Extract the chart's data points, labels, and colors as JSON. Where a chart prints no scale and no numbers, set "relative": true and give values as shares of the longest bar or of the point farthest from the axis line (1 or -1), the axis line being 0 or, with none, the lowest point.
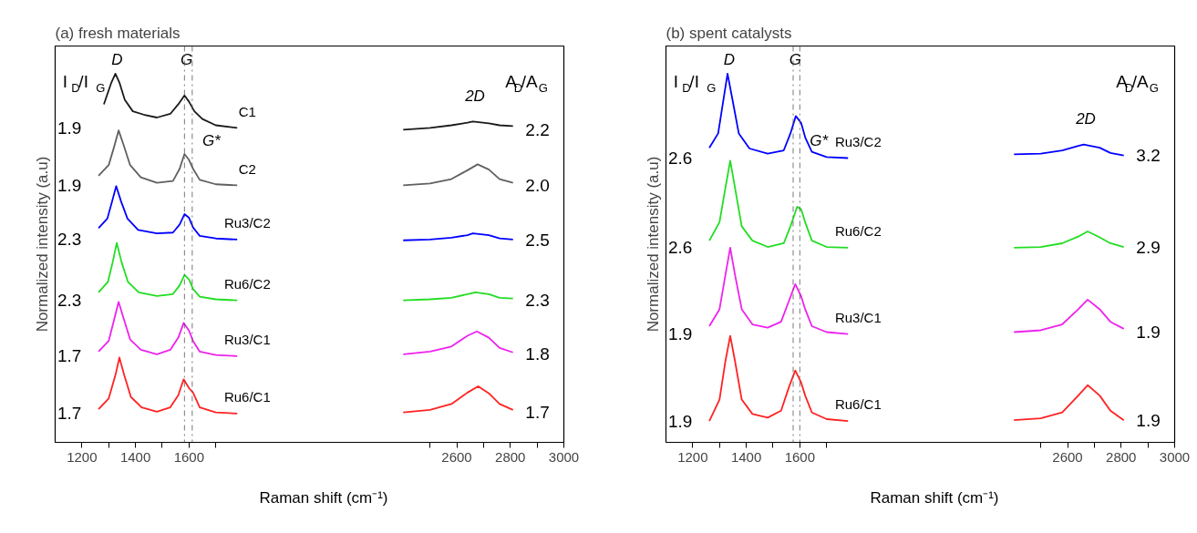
{
  "chart_data": [
    {
      "type": "line",
      "title": "(a) fresh materials",
      "ylabel": "Normalized intensity (a.u)",
      "xlabel": "Raman shift (cm⁻¹)",
      "relative": true,
      "xlim": [
        1100,
        3000
      ],
      "xticks": [
        1200,
        {
          "value": 1300,
          "label": null
        },
        1400,
        {
          "value": 1500,
          "label": null
        },
        1600,
        {
          "value": 1700,
          "label": null
        },
        {
          "value": 2500,
          "label": null
        },
        2600,
        {
          "value": 2700,
          "label": null
        },
        2800,
        {
          "value": 2900,
          "label": null
        },
        3000
      ],
      "series": [
        {
          "name": "C1",
          "color": "#1a1a1a",
          "x": [
            1282,
            1310,
            1325,
            1340,
            1360,
            1390,
            1430,
            1480,
            1530,
            1560,
            1583,
            1600,
            1620,
            1650,
            1700,
            1780,
            2400,
            2500,
            2580,
            2640,
            2660,
            2720,
            2760,
            2810
          ],
          "values": [
            0.917,
            0.976,
            1.0,
            0.976,
            0.929,
            0.898,
            0.889,
            0.881,
            0.891,
            0.917,
            0.941,
            0.924,
            0.898,
            0.877,
            0.86,
            0.853,
            0.848,
            0.853,
            0.86,
            0.867,
            0.87,
            0.865,
            0.86,
            0.858
          ]
        },
        {
          "name": "C2",
          "color": "#606060",
          "x": [
            1262,
            1300,
            1320,
            1337,
            1355,
            1380,
            1420,
            1480,
            1540,
            1565,
            1583,
            1600,
            1615,
            1640,
            1700,
            1780,
            2400,
            2500,
            2580,
            2640,
            2678,
            2720,
            2760,
            2810
          ],
          "values": [
            0.723,
            0.752,
            0.801,
            0.846,
            0.808,
            0.752,
            0.719,
            0.704,
            0.709,
            0.742,
            0.782,
            0.766,
            0.742,
            0.712,
            0.7,
            0.697,
            0.697,
            0.702,
            0.714,
            0.738,
            0.754,
            0.74,
            0.714,
            0.704
          ]
        },
        {
          "name": "Ru3/C2",
          "color": "#0000ff",
          "x": [
            1262,
            1295,
            1313,
            1328,
            1346,
            1370,
            1410,
            1480,
            1540,
            1565,
            1583,
            1600,
            1615,
            1640,
            1700,
            1780,
            2400,
            2500,
            2580,
            2640,
            2660,
            2720,
            2760,
            2810
          ],
          "values": [
            0.581,
            0.607,
            0.654,
            0.695,
            0.654,
            0.607,
            0.576,
            0.567,
            0.569,
            0.591,
            0.619,
            0.609,
            0.583,
            0.56,
            0.553,
            0.55,
            0.548,
            0.55,
            0.555,
            0.562,
            0.567,
            0.562,
            0.553,
            0.55
          ]
        },
        {
          "name": "Ru6/C2",
          "color": "#22dd22",
          "x": [
            1262,
            1297,
            1315,
            1330,
            1348,
            1372,
            1412,
            1480,
            1540,
            1565,
            1583,
            1600,
            1615,
            1640,
            1700,
            1780,
            2400,
            2500,
            2580,
            2640,
            2670,
            2720,
            2760,
            2810
          ],
          "values": [
            0.407,
            0.435,
            0.489,
            0.541,
            0.489,
            0.435,
            0.407,
            0.397,
            0.402,
            0.426,
            0.454,
            0.442,
            0.416,
            0.395,
            0.388,
            0.385,
            0.385,
            0.388,
            0.392,
            0.402,
            0.407,
            0.402,
            0.392,
            0.39
          ]
        },
        {
          "name": "Ru3/C1",
          "color": "#ee22ee",
          "x": [
            1262,
            1300,
            1322,
            1337,
            1355,
            1380,
            1420,
            1480,
            1530,
            1560,
            1580,
            1600,
            1615,
            1640,
            1700,
            1780,
            2400,
            2500,
            2580,
            2640,
            2675,
            2720,
            2760,
            2810
          ],
          "values": [
            0.246,
            0.275,
            0.338,
            0.381,
            0.338,
            0.279,
            0.251,
            0.239,
            0.251,
            0.284,
            0.324,
            0.303,
            0.275,
            0.246,
            0.237,
            0.234,
            0.239,
            0.246,
            0.26,
            0.289,
            0.301,
            0.284,
            0.256,
            0.244
          ]
        },
        {
          "name": "Ru6/C1",
          "color": "#ff2222",
          "x": [
            1262,
            1300,
            1325,
            1340,
            1358,
            1383,
            1423,
            1480,
            1530,
            1560,
            1580,
            1600,
            1615,
            1640,
            1700,
            1780,
            2400,
            2500,
            2580,
            2640,
            2680,
            2720,
            2760,
            2810
          ],
          "values": [
            0.09,
            0.119,
            0.182,
            0.23,
            0.182,
            0.123,
            0.095,
            0.083,
            0.095,
            0.128,
            0.171,
            0.147,
            0.135,
            0.095,
            0.081,
            0.078,
            0.081,
            0.088,
            0.104,
            0.135,
            0.152,
            0.133,
            0.104,
            0.088
          ]
        }
      ],
      "ref_lines": [
        {
          "axis": "x",
          "value": 1583,
          "color": "#555555",
          "line_style": "dashed"
        },
        {
          "axis": "x",
          "value": 1612,
          "color": "#555555",
          "line_style": "dashed"
        }
      ],
      "annotations": [
        "I$_{D}$/I$_{G}$",
        "A$_{D}$/A$_{G}$",
        "D",
        "G",
        "G*",
        "2D",
        "1.9",
        "1.9",
        "2.3",
        "2.3",
        "1.7",
        "1.7",
        "2.2",
        "2.0",
        "2.5",
        "2.3",
        "1.8",
        "1.7"
      ]
    },
    {
      "type": "line",
      "title": "(b) spent catalysts",
      "ylabel": "Normalized intensity (a.u)",
      "xlabel": "Raman shift (cm⁻¹)",
      "relative": true,
      "xlim": [
        1100,
        3000
      ],
      "xticks": [
        1200,
        {
          "value": 1300,
          "label": null
        },
        1400,
        {
          "value": 1500,
          "label": null
        },
        1600,
        {
          "value": 1700,
          "label": null
        },
        {
          "value": 2500,
          "label": null
        },
        2600,
        {
          "value": 2700,
          "label": null
        },
        2800,
        {
          "value": 2900,
          "label": null
        },
        3000
      ],
      "series": [
        {
          "name": "Ru3/C2",
          "color": "#0000ff",
          "x": [
            1262,
            1295,
            1315,
            1330,
            1348,
            1372,
            1412,
            1480,
            1540,
            1565,
            1585,
            1605,
            1620,
            1645,
            1700,
            1780,
            2400,
            2500,
            2580,
            2640,
            2660,
            2720,
            2760,
            2810
          ],
          "values": [
            0.799,
            0.838,
            0.931,
            1.0,
            0.931,
            0.838,
            0.797,
            0.783,
            0.792,
            0.838,
            0.885,
            0.866,
            0.827,
            0.788,
            0.774,
            0.771,
            0.781,
            0.783,
            0.792,
            0.804,
            0.808,
            0.799,
            0.785,
            0.778
          ]
        },
        {
          "name": "Ru6/C2",
          "color": "#22dd22",
          "x": [
            1262,
            1300,
            1322,
            1340,
            1358,
            1383,
            1423,
            1480,
            1540,
            1565,
            1590,
            1605,
            1620,
            1645,
            1700,
            1780,
            2400,
            2500,
            2580,
            2640,
            2675,
            2720,
            2760,
            2810
          ],
          "values": [
            0.547,
            0.597,
            0.69,
            0.764,
            0.69,
            0.586,
            0.547,
            0.53,
            0.54,
            0.586,
            0.639,
            0.632,
            0.597,
            0.547,
            0.53,
            0.528,
            0.528,
            0.53,
            0.54,
            0.558,
            0.572,
            0.556,
            0.54,
            0.53
          ]
        },
        {
          "name": "Ru3/C1",
          "color": "#ee22ee",
          "x": [
            1262,
            1300,
            1322,
            1340,
            1358,
            1383,
            1423,
            1480,
            1530,
            1560,
            1583,
            1605,
            1620,
            1645,
            1700,
            1780,
            2400,
            2500,
            2580,
            2640,
            2675,
            2720,
            2760,
            2810
          ],
          "values": [
            0.315,
            0.361,
            0.454,
            0.528,
            0.454,
            0.361,
            0.32,
            0.311,
            0.327,
            0.385,
            0.429,
            0.396,
            0.361,
            0.315,
            0.299,
            0.294,
            0.299,
            0.304,
            0.32,
            0.361,
            0.387,
            0.361,
            0.327,
            0.308
          ]
        },
        {
          "name": "Ru6/C1",
          "color": "#ff2222",
          "x": [
            1262,
            1300,
            1322,
            1340,
            1358,
            1383,
            1423,
            1480,
            1530,
            1560,
            1583,
            1605,
            1620,
            1645,
            1700,
            1780,
            2400,
            2500,
            2580,
            2640,
            2675,
            2720,
            2760,
            2810
          ],
          "values": [
            0.058,
            0.116,
            0.22,
            0.289,
            0.22,
            0.116,
            0.077,
            0.067,
            0.086,
            0.151,
            0.195,
            0.162,
            0.127,
            0.081,
            0.063,
            0.058,
            0.06,
            0.065,
            0.081,
            0.127,
            0.155,
            0.127,
            0.086,
            0.06
          ]
        }
      ],
      "ref_lines": [
        {
          "axis": "x",
          "value": 1575,
          "color": "#555555",
          "line_style": "dashed"
        },
        {
          "axis": "x",
          "value": 1600,
          "color": "#555555",
          "line_style": "dashed"
        }
      ],
      "annotations": [
        "I$_{D}$/I$_{G}$",
        "A$_{D}$/A$_{G}$",
        "D",
        "G",
        "G*",
        "2D",
        "2.6",
        "2.6",
        "1.9",
        "1.9",
        "3.2",
        "2.9",
        "1.9",
        "1.9"
      ]
    }
  ]
}
